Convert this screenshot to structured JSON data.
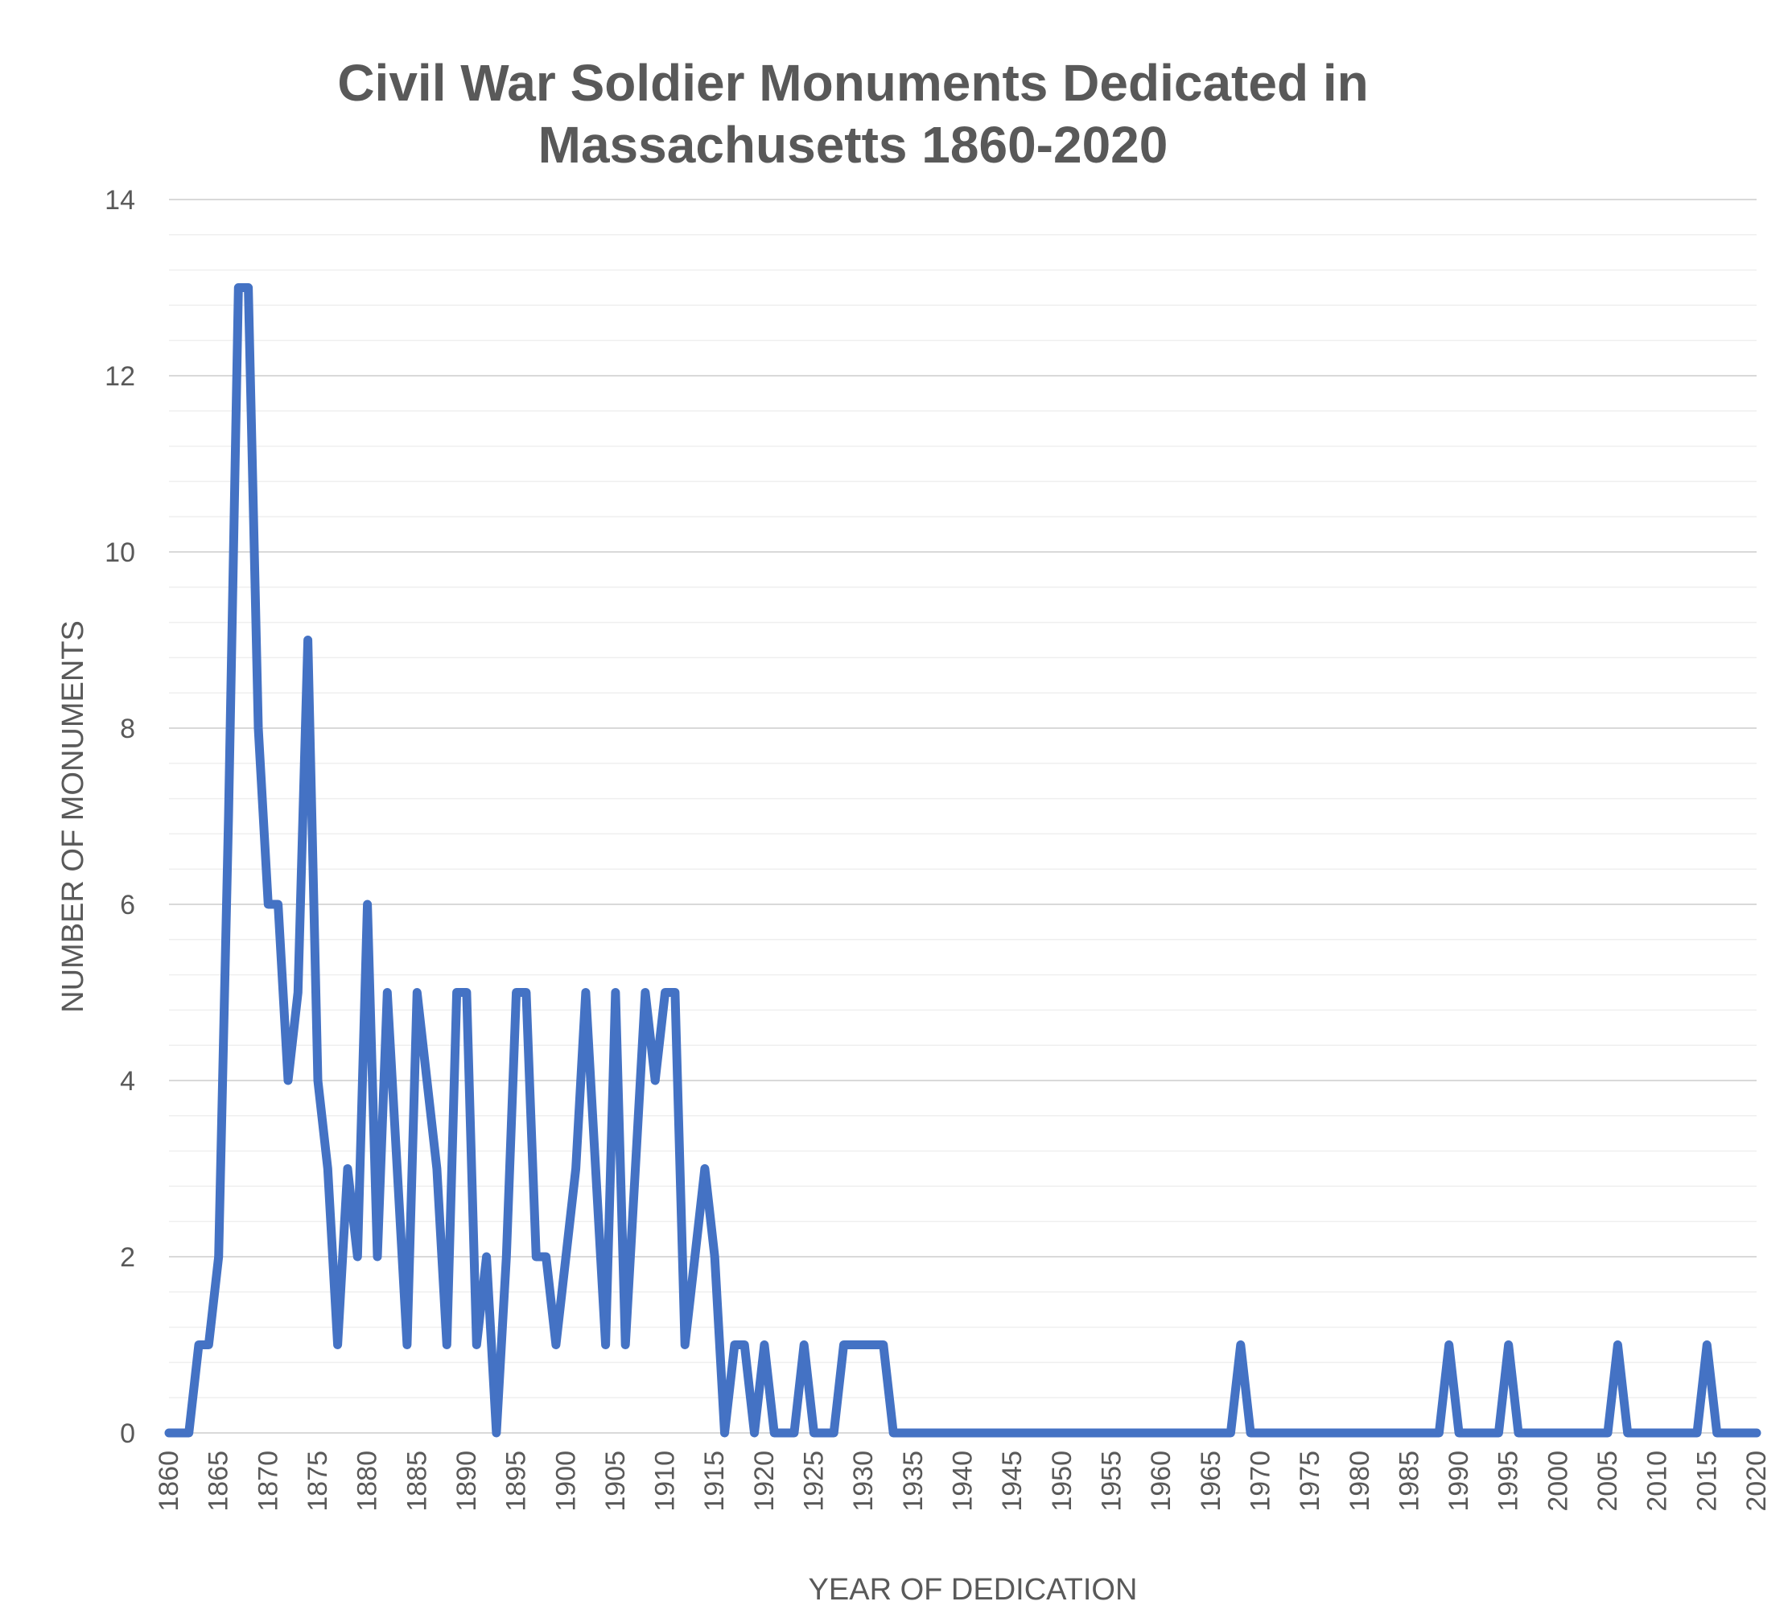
{
  "chart_data": {
    "type": "line",
    "title": "Civil War Soldier Monuments Dedicated in Massachusetts 1860-2020",
    "title_lines": [
      "Civil War Soldier Monuments Dedicated in",
      "Massachusetts 1860-2020"
    ],
    "xlabel": "YEAR OF DEDICATION",
    "ylabel": "NUMBER OF MONUMENTS",
    "xlim": [
      1860,
      2020
    ],
    "ylim": [
      0,
      14
    ],
    "x_ticks": [
      1860,
      1865,
      1870,
      1875,
      1880,
      1885,
      1890,
      1895,
      1900,
      1905,
      1910,
      1915,
      1920,
      1925,
      1930,
      1935,
      1940,
      1945,
      1950,
      1955,
      1960,
      1965,
      1970,
      1975,
      1980,
      1985,
      1990,
      1995,
      2000,
      2005,
      2010,
      2015,
      2020
    ],
    "y_ticks": [
      0,
      2,
      4,
      6,
      8,
      10,
      12,
      14
    ],
    "y_minor_step": 0.4,
    "grid": true,
    "legend": "none",
    "line_color": "#4472C4",
    "series": [
      {
        "x": [
          1860,
          1861,
          1862,
          1863,
          1864,
          1865,
          1866,
          1867,
          1868,
          1869,
          1870,
          1871,
          1872,
          1873,
          1874,
          1875,
          1876,
          1877,
          1878,
          1879,
          1880,
          1881,
          1882,
          1883,
          1884,
          1885,
          1886,
          1887,
          1888,
          1889,
          1890,
          1891,
          1892,
          1893,
          1894,
          1895,
          1896,
          1897,
          1898,
          1899,
          1900,
          1901,
          1902,
          1903,
          1904,
          1905,
          1906,
          1907,
          1908,
          1909,
          1910,
          1911,
          1912,
          1913,
          1914,
          1915,
          1916,
          1917,
          1918,
          1919,
          1920,
          1921,
          1922,
          1923,
          1924,
          1925,
          1926,
          1927,
          1928,
          1929,
          1930,
          1931,
          1932,
          1933,
          1934,
          1935,
          1936,
          1937,
          1938,
          1939,
          1940,
          1941,
          1942,
          1943,
          1944,
          1945,
          1946,
          1947,
          1948,
          1949,
          1950,
          1951,
          1952,
          1953,
          1954,
          1955,
          1956,
          1957,
          1958,
          1959,
          1960,
          1961,
          1962,
          1963,
          1964,
          1965,
          1966,
          1967,
          1968,
          1969,
          1970,
          1971,
          1972,
          1973,
          1974,
          1975,
          1976,
          1977,
          1978,
          1979,
          1980,
          1981,
          1982,
          1983,
          1984,
          1985,
          1986,
          1987,
          1988,
          1989,
          1990,
          1991,
          1992,
          1993,
          1994,
          1995,
          1996,
          1997,
          1998,
          1999,
          2000,
          2001,
          2002,
          2003,
          2004,
          2005,
          2006,
          2007,
          2008,
          2009,
          2010,
          2011,
          2012,
          2013,
          2014,
          2015,
          2016,
          2017,
          2018,
          2019,
          2020
        ],
        "values": [
          0,
          0,
          0,
          1,
          1,
          2,
          7,
          13,
          13,
          8,
          6,
          6,
          4,
          5,
          9,
          4,
          3,
          1,
          3,
          2,
          6,
          2,
          5,
          3,
          1,
          5,
          4,
          3,
          1,
          5,
          5,
          1,
          2,
          0,
          2,
          5,
          5,
          2,
          2,
          1,
          2,
          3,
          5,
          3,
          1,
          5,
          1,
          3,
          5,
          4,
          5,
          5,
          1,
          2,
          3,
          2,
          0,
          1,
          1,
          0,
          1,
          0,
          0,
          0,
          1,
          0,
          0,
          0,
          1,
          1,
          1,
          1,
          1,
          0,
          0,
          0,
          0,
          0,
          0,
          0,
          0,
          0,
          0,
          0,
          0,
          0,
          0,
          0,
          0,
          0,
          0,
          0,
          0,
          0,
          0,
          0,
          0,
          0,
          0,
          0,
          0,
          0,
          0,
          0,
          0,
          0,
          0,
          0,
          1,
          0,
          0,
          0,
          0,
          0,
          0,
          0,
          0,
          0,
          0,
          0,
          0,
          0,
          0,
          0,
          0,
          0,
          0,
          0,
          0,
          1,
          0,
          0,
          0,
          0,
          0,
          1,
          0,
          0,
          0,
          0,
          0,
          0,
          0,
          0,
          0,
          0,
          1,
          0,
          0,
          0,
          0,
          0,
          0,
          0,
          0,
          1,
          0,
          0,
          0,
          0,
          0
        ]
      }
    ]
  }
}
